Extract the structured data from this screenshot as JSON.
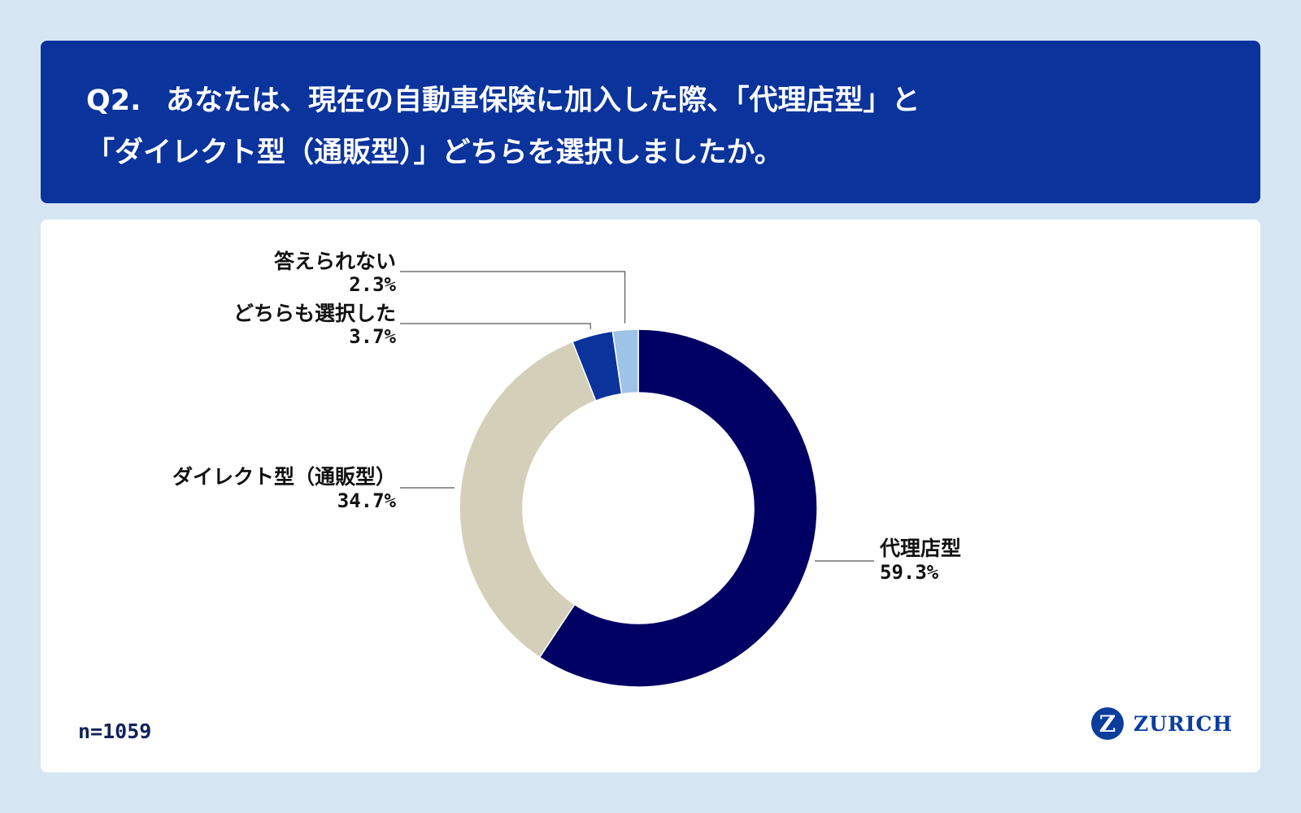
{
  "question": {
    "number": "Q2.",
    "line1": "あなたは、現在の自動車保険に加入した際、「代理店型」と",
    "line2": "「ダイレクト型（通販型）」どちらを選択しましたか。"
  },
  "sample_size": "n=1059",
  "logo": {
    "mark": "Z",
    "text": "ZURICH"
  },
  "chart_data": {
    "type": "pie",
    "style": "donut",
    "categories": [
      "代理店型",
      "ダイレクト型（通販型）",
      "どちらも選択した",
      "答えられない"
    ],
    "values": [
      59.3,
      34.7,
      3.7,
      2.3
    ],
    "value_labels": [
      "59.3%",
      "34.7%",
      "3.7%",
      "2.3%"
    ],
    "colors": [
      "#000064",
      "#d4cfb9",
      "#0a339c",
      "#9dc3e6"
    ],
    "start": "top, clockwise"
  }
}
